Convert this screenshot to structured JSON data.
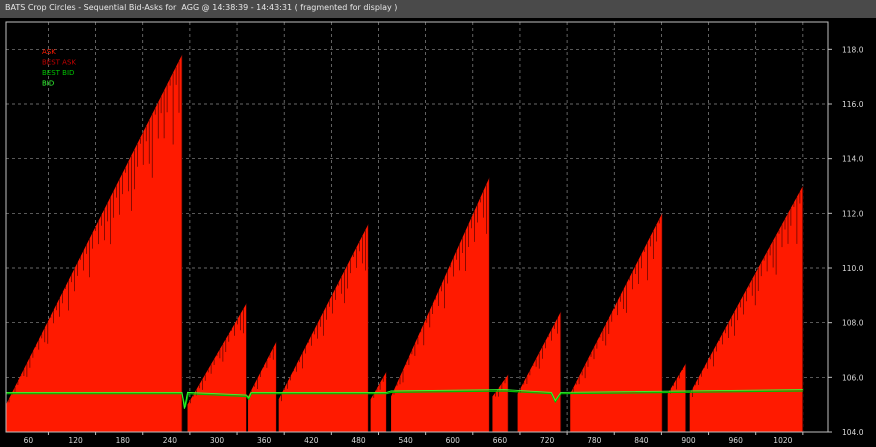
{
  "window": {
    "title": "BATS Crop Circles - Sequential Bid-Asks for  AGG @ 14:38:39 - 14:43:31 ( fragmented for display )"
  },
  "colors": {
    "background": "#000000",
    "ask": "#ff1a00",
    "best_ask": "#c00000",
    "best_bid": "#00c000",
    "bid": "#33ff33",
    "grid": "#8c8c8c"
  },
  "chart_data": {
    "type": "line",
    "title": "BATS Crop Circles - Sequential Bid-Asks for  AGG @ 14:38:39 - 14:43:31 ( fragmented for display )",
    "xlim": [
      6,
      1052
    ],
    "ylim": [
      104.0,
      119.0
    ],
    "x_ticks": [
      60,
      120,
      180,
      240,
      300,
      360,
      420,
      480,
      540,
      600,
      660,
      720,
      780,
      840,
      900,
      960,
      1020
    ],
    "y_ticks": [
      "104.0",
      "106.0",
      "108.0",
      "110.0",
      "112.0",
      "114.0",
      "116.0",
      "118.0"
    ],
    "y_tick_values": [
      104.0,
      106.0,
      108.0,
      110.0,
      112.0,
      114.0,
      116.0,
      118.0
    ],
    "grid": true,
    "legend": {
      "placement": "top-left",
      "entries": [
        "ASK",
        "BEST ASK",
        "BEST BID",
        "BID"
      ]
    },
    "series": [
      {
        "name": "ASK",
        "color": "#ff1a00",
        "ramps": [
          {
            "x0": 6,
            "x1": 230,
            "y0": 105.0,
            "y1": 117.8
          },
          {
            "x0": 237,
            "x1": 312,
            "y0": 105.0,
            "y1": 108.7
          },
          {
            "x0": 314,
            "x1": 350,
            "y0": 105.3,
            "y1": 107.3
          },
          {
            "x0": 353,
            "x1": 467,
            "y0": 105.2,
            "y1": 111.6
          },
          {
            "x0": 470,
            "x1": 490,
            "y0": 105.2,
            "y1": 106.2
          },
          {
            "x0": 496,
            "x1": 621,
            "y0": 105.3,
            "y1": 113.3
          },
          {
            "x0": 625,
            "x1": 645,
            "y0": 105.3,
            "y1": 106.1
          },
          {
            "x0": 657,
            "x1": 712,
            "y0": 105.4,
            "y1": 108.4
          },
          {
            "x0": 724,
            "x1": 841,
            "y0": 105.4,
            "y1": 112.0
          },
          {
            "x0": 848,
            "x1": 871,
            "y0": 105.4,
            "y1": 106.5
          },
          {
            "x0": 876,
            "x1": 1020,
            "y0": 105.4,
            "y1": 113.0
          }
        ]
      },
      {
        "name": "BEST ASK",
        "color": "#c00000",
        "ramps": []
      },
      {
        "name": "BEST BID",
        "color": "#00c000",
        "points": [
          [
            6,
            105.4
          ],
          [
            230,
            105.4
          ],
          [
            234,
            104.9
          ],
          [
            238,
            105.4
          ],
          [
            312,
            105.3
          ],
          [
            315,
            105.2
          ],
          [
            318,
            105.4
          ],
          [
            490,
            105.4
          ],
          [
            496,
            105.45
          ],
          [
            640,
            105.5
          ],
          [
            700,
            105.4
          ],
          [
            705,
            105.1
          ],
          [
            712,
            105.4
          ],
          [
            1020,
            105.5
          ]
        ]
      },
      {
        "name": "BID",
        "color": "#33ff33",
        "points": [
          [
            6,
            105.45
          ],
          [
            230,
            105.45
          ],
          [
            233,
            104.85
          ],
          [
            237,
            105.45
          ],
          [
            312,
            105.35
          ],
          [
            315,
            105.25
          ],
          [
            318,
            105.45
          ],
          [
            490,
            105.45
          ],
          [
            496,
            105.5
          ],
          [
            640,
            105.55
          ],
          [
            700,
            105.45
          ],
          [
            705,
            105.15
          ],
          [
            712,
            105.45
          ],
          [
            1020,
            105.55
          ]
        ]
      }
    ]
  }
}
